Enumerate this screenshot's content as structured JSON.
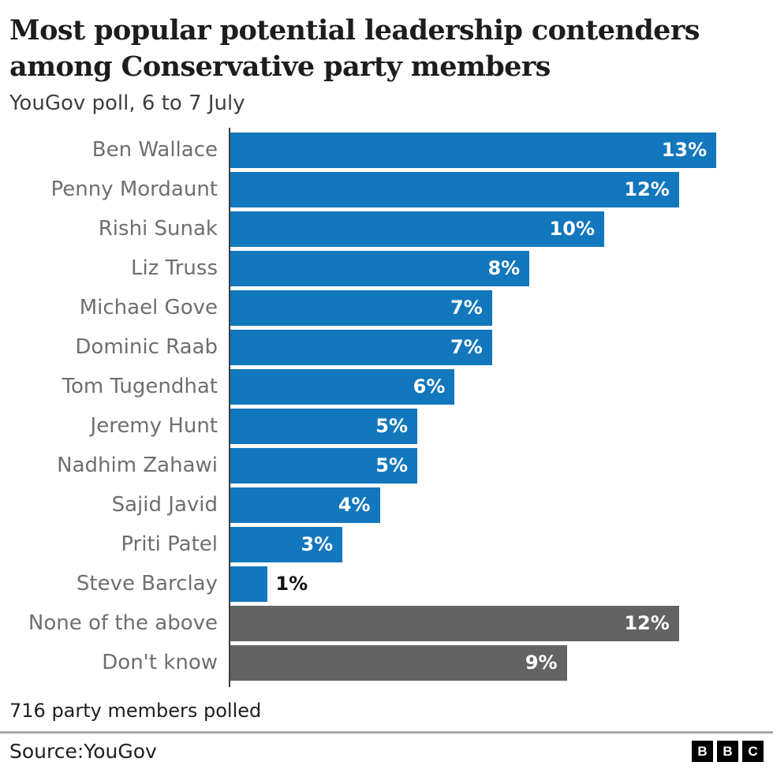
{
  "header": {
    "title_line1": "Most popular potential leadership contenders",
    "title_line2": "among Conservative party members",
    "subtitle": "YouGov poll, 6 to 7 July"
  },
  "chart_data": {
    "type": "bar",
    "orientation": "horizontal",
    "title": "Most popular potential leadership contenders among Conservative party members",
    "subtitle": "YouGov poll, 6 to 7 July",
    "unit": "%",
    "xlim": [
      0,
      13.3
    ],
    "grid": false,
    "legend": false,
    "value_label_position": "inside-end (outside-end when bar too short)",
    "categories": [
      "Ben Wallace",
      "Penny Mordaunt",
      "Rishi Sunak",
      "Liz Truss",
      "Michael Gove",
      "Dominic Raab",
      "Tom Tugendhat",
      "Jeremy Hunt",
      "Nadhim Zahawi",
      "Sajid Javid",
      "Priti Patel",
      "Steve Barclay",
      "None of the above",
      "Don't know"
    ],
    "values": [
      13,
      12,
      10,
      8,
      7,
      7,
      6,
      5,
      5,
      4,
      3,
      1,
      12,
      9
    ],
    "display_values": [
      "13%",
      "12%",
      "10%",
      "8%",
      "7%",
      "7%",
      "6%",
      "5%",
      "5%",
      "4%",
      "3%",
      "1%",
      "12%",
      "9%"
    ],
    "bar_color_keys": [
      "blue",
      "blue",
      "blue",
      "blue",
      "blue",
      "blue",
      "blue",
      "blue",
      "blue",
      "blue",
      "blue",
      "blue",
      "gray",
      "gray"
    ]
  },
  "footer": {
    "note": "716 party members polled",
    "source": "Source:YouGov",
    "logo_letters": [
      "B",
      "B",
      "C"
    ]
  },
  "colors": {
    "bar_blue": "#1277bd",
    "bar_gray": "#636363",
    "axis": "#3d3d3d",
    "category_label": "#6e6e73",
    "value_label_inside": "#ffffff",
    "value_label_outside": "#111111",
    "title_text": "#1d1d1b",
    "subtitle_text": "#3f3f42",
    "divider": "#a6a6a6"
  }
}
